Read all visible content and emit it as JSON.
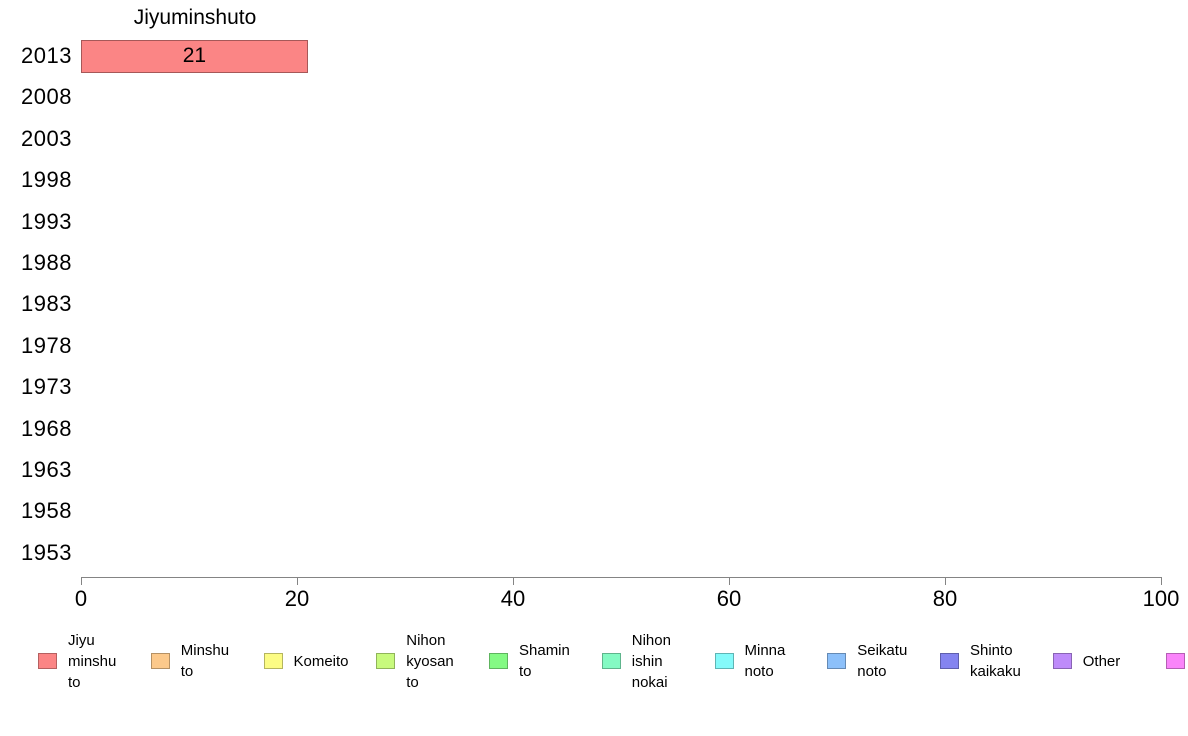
{
  "chart_data": {
    "type": "bar",
    "orientation": "horizontal",
    "title": "Jiyuminshuto",
    "xlabel": "",
    "ylabel": "",
    "categories": [
      "2013",
      "2008",
      "2003",
      "1998",
      "1993",
      "1988",
      "1983",
      "1978",
      "1973",
      "1968",
      "1963",
      "1958",
      "1953"
    ],
    "series": [
      {
        "name": "Jiyuminshuto",
        "color": "#FB8585",
        "values": [
          21,
          null,
          null,
          null,
          null,
          null,
          null,
          null,
          null,
          null,
          null,
          null,
          null
        ]
      }
    ],
    "bar_labels": [
      "21"
    ],
    "xlim": [
      0,
      100
    ],
    "x_ticks": [
      "0",
      "20",
      "40",
      "60",
      "80",
      "100"
    ],
    "grid": false,
    "axis_color": "#848484",
    "legend_position": "bottom",
    "legend": [
      {
        "label": "Jiyu minshu to",
        "color": "#FB8585"
      },
      {
        "label": "Minshu to",
        "color": "#FCC98B"
      },
      {
        "label": "Komeito",
        "color": "#FCFC84"
      },
      {
        "label": "Nihon kyosan to",
        "color": "#C8FA7D"
      },
      {
        "label": "Shamin to",
        "color": "#84FA84"
      },
      {
        "label": "Nihon ishin nokai",
        "color": "#84FAC3"
      },
      {
        "label": "Minna noto",
        "color": "#84FAFA"
      },
      {
        "label": "Seikatu noto",
        "color": "#8CC0FA"
      },
      {
        "label": "Shinto kaikaku",
        "color": "#8484F0"
      },
      {
        "label": "Other",
        "color": "#BE8BFA"
      },
      {
        "label": "",
        "color": "#FA84FA"
      }
    ]
  }
}
